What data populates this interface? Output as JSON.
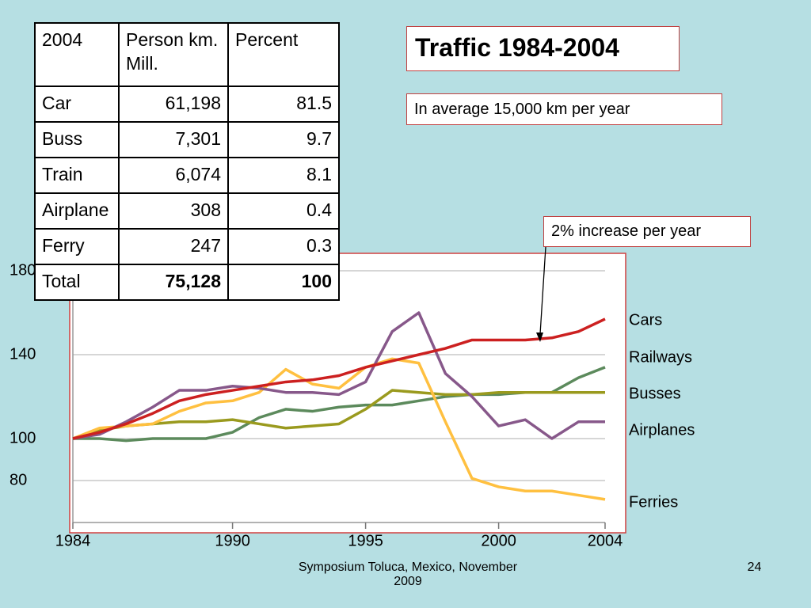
{
  "title": "Traffic 1984-2004",
  "note": "In average 15,000 km per year",
  "annotation": "2% increase per year",
  "footer": {
    "text": "Symposium  Toluca, Mexico, November 2009",
    "page": "24"
  },
  "table": {
    "header": [
      "2004",
      "Person km.  Mill.",
      "Percent"
    ],
    "rows": [
      [
        "Car",
        "61,198",
        "81.5"
      ],
      [
        "Buss",
        "7,301",
        "9.7"
      ],
      [
        "Train",
        "6,074",
        "8.1"
      ],
      [
        "Airplane",
        "308",
        "0.4"
      ],
      [
        "Ferry",
        "247",
        "0.3"
      ],
      [
        "Total",
        "75,128",
        "100"
      ]
    ]
  },
  "chart_data": {
    "type": "line",
    "x": [
      1984,
      1985,
      1986,
      1987,
      1988,
      1989,
      1990,
      1991,
      1992,
      1993,
      1994,
      1995,
      1996,
      1997,
      1998,
      1999,
      2000,
      2001,
      2002,
      2003,
      2004
    ],
    "xlim": [
      1984,
      2004
    ],
    "xticks": [
      1984,
      1990,
      1995,
      2000,
      2004
    ],
    "ylim": [
      60,
      180
    ],
    "yticks": [
      80,
      100,
      140,
      180
    ],
    "grid": true,
    "series": [
      {
        "name": "Cars",
        "color": "#cc2020",
        "values": [
          100,
          103,
          107,
          112,
          118,
          121,
          123,
          125,
          127,
          128,
          130,
          134,
          137,
          140,
          143,
          147,
          147,
          147,
          148,
          151,
          157
        ]
      },
      {
        "name": "Railways",
        "color": "#5c8a5c",
        "values": [
          100,
          100,
          99,
          100,
          100,
          100,
          103,
          110,
          114,
          113,
          115,
          116,
          116,
          118,
          120,
          121,
          121,
          122,
          122,
          129,
          134
        ]
      },
      {
        "name": "Busses",
        "color": "#9a9a1e",
        "values": [
          100,
          104,
          106,
          107,
          108,
          108,
          109,
          107,
          105,
          106,
          107,
          114,
          123,
          122,
          121,
          121,
          122,
          122,
          122,
          122,
          122
        ]
      },
      {
        "name": "Airplanes",
        "color": "#87588a",
        "values": [
          100,
          102,
          108,
          115,
          123,
          123,
          125,
          124,
          122,
          122,
          121,
          127,
          151,
          160,
          131,
          120,
          106,
          109,
          100,
          108,
          108
        ]
      },
      {
        "name": "Ferries",
        "color": "#ffc040",
        "values": [
          100,
          105,
          106,
          107,
          113,
          117,
          118,
          122,
          133,
          126,
          124,
          134,
          138,
          136,
          108,
          81,
          77,
          75,
          75,
          73,
          71
        ]
      }
    ]
  }
}
